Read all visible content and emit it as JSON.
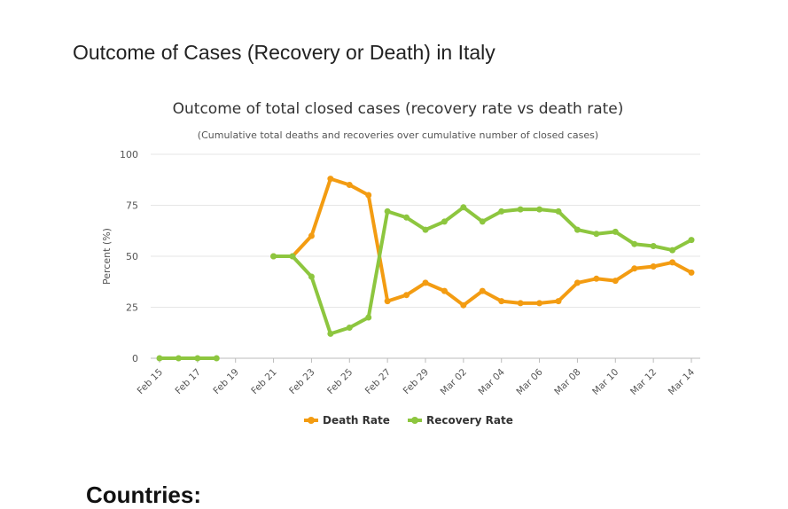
{
  "page": {
    "title": "Outcome of Cases (Recovery or Death) in Italy",
    "next_heading": "Countries:"
  },
  "chart_data": {
    "type": "line",
    "title": "Outcome of total closed cases (recovery rate vs death rate)",
    "subtitle": "(Cumulative total deaths and recoveries over cumulative number of closed cases)",
    "ylabel": "Percent (%)",
    "xlabel": "",
    "ylim": [
      0,
      100
    ],
    "yticks": [
      0,
      25,
      50,
      75,
      100
    ],
    "categories": [
      "Feb 15",
      "Feb 16",
      "Feb 17",
      "Feb 18",
      "Feb 19",
      "Feb 20",
      "Feb 21",
      "Feb 22",
      "Feb 23",
      "Feb 24",
      "Feb 25",
      "Feb 26",
      "Feb 27",
      "Feb 28",
      "Feb 29",
      "Mar 01",
      "Mar 02",
      "Mar 03",
      "Mar 04",
      "Mar 05",
      "Mar 06",
      "Mar 07",
      "Mar 08",
      "Mar 09",
      "Mar 10",
      "Mar 11",
      "Mar 12",
      "Mar 13",
      "Mar 14"
    ],
    "xtick_labels": [
      "Feb 15",
      "Feb 17",
      "Feb 19",
      "Feb 21",
      "Feb 23",
      "Feb 25",
      "Feb 27",
      "Feb 29",
      "Mar 02",
      "Mar 04",
      "Mar 06",
      "Mar 08",
      "Mar 10",
      "Mar 12",
      "Mar 14"
    ],
    "series": [
      {
        "name": "Death Rate",
        "color": "#f39c12",
        "values": [
          null,
          null,
          null,
          null,
          null,
          null,
          50,
          50,
          60,
          88,
          85,
          80,
          28,
          31,
          37,
          33,
          26,
          33,
          28,
          27,
          27,
          28,
          37,
          39,
          38,
          44,
          45,
          47,
          42
        ]
      },
      {
        "name": "Recovery Rate",
        "color": "#8dc63f",
        "values": [
          0,
          0,
          0,
          0,
          null,
          null,
          50,
          50,
          40,
          12,
          15,
          20,
          72,
          69,
          63,
          67,
          74,
          67,
          72,
          73,
          73,
          72,
          63,
          61,
          62,
          56,
          55,
          53,
          58
        ]
      }
    ],
    "legend": "bottom-center",
    "grid": true
  }
}
